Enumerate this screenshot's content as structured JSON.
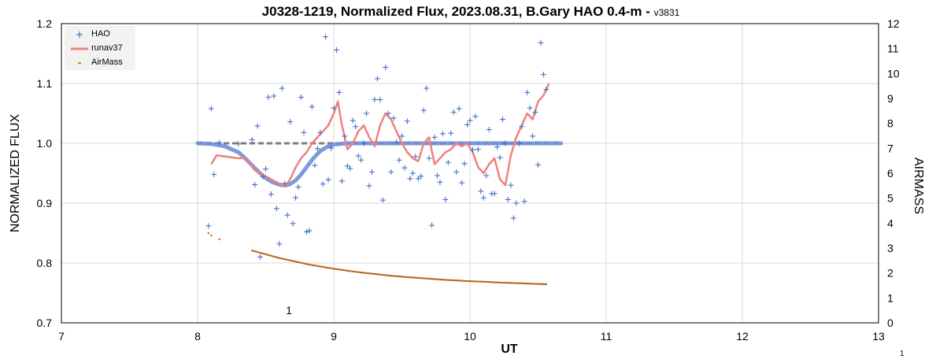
{
  "chart_data": {
    "type": "scatter",
    "title": "J0328-1219, Normalized Flux, 2023.08.31, B.Gary HAO 0.4-m - ",
    "version": "v3831",
    "xlabel": "UT",
    "ylabel": "NORMALIZED FLUX",
    "y2label": "AIRMASS",
    "xlim": [
      7,
      13
    ],
    "ylim": [
      0.7,
      1.2
    ],
    "y2lim": [
      0,
      12
    ],
    "x_ticks": [
      "7",
      "8",
      "9",
      "10",
      "11",
      "12",
      "13"
    ],
    "y_ticks": [
      "0.7",
      "0.8",
      "0.9",
      "1.0",
      "1.1",
      "1.2"
    ],
    "y2_ticks": [
      "0",
      "1",
      "2",
      "3",
      "4",
      "5",
      "6",
      "7",
      "8",
      "9",
      "10",
      "11",
      "12"
    ],
    "grid": true,
    "legend_position": "top-left",
    "annotation": "1",
    "page_number": "1",
    "reference_line": {
      "name": "",
      "y": 1.0,
      "x": [
        8.0,
        10.67
      ],
      "color": "#7f7f7f",
      "style": "dashed"
    },
    "model_curve": {
      "name": "",
      "color": "#6f8fd8",
      "x": [
        8.0,
        8.1,
        8.2,
        8.3,
        8.35,
        8.4,
        8.45,
        8.5,
        8.55,
        8.6,
        8.62,
        8.65,
        8.68,
        8.72,
        8.76,
        8.8,
        8.85,
        8.9,
        8.95,
        9.0,
        9.1,
        9.2,
        9.4,
        10.0,
        10.67
      ],
      "y": [
        1.0,
        0.999,
        0.995,
        0.985,
        0.975,
        0.963,
        0.952,
        0.942,
        0.935,
        0.931,
        0.93,
        0.93,
        0.932,
        0.938,
        0.948,
        0.96,
        0.975,
        0.987,
        0.994,
        0.998,
        1.0,
        1.0,
        1.0,
        1.0,
        1.0
      ]
    },
    "series": [
      {
        "name": "HAO",
        "marker": "+",
        "color": "#4472c4",
        "axis": "left",
        "x": [
          8.08,
          8.1,
          8.12,
          8.16,
          8.3,
          8.4,
          8.42,
          8.44,
          8.46,
          8.48,
          8.5,
          8.52,
          8.54,
          8.56,
          8.58,
          8.6,
          8.62,
          8.64,
          8.66,
          8.68,
          8.7,
          8.72,
          8.74,
          8.76,
          8.78,
          8.8,
          8.82,
          8.84,
          8.86,
          8.88,
          8.9,
          8.92,
          8.94,
          8.96,
          8.98,
          9.0,
          9.02,
          9.04,
          9.06,
          9.08,
          9.1,
          9.12,
          9.14,
          9.16,
          9.18,
          9.2,
          9.22,
          9.24,
          9.26,
          9.28,
          9.3,
          9.32,
          9.34,
          9.36,
          9.38,
          9.4,
          9.42,
          9.44,
          9.46,
          9.48,
          9.5,
          9.52,
          9.54,
          9.56,
          9.58,
          9.6,
          9.62,
          9.64,
          9.66,
          9.68,
          9.7,
          9.72,
          9.74,
          9.76,
          9.78,
          9.8,
          9.82,
          9.84,
          9.86,
          9.88,
          9.9,
          9.92,
          9.94,
          9.96,
          9.98,
          10.0,
          10.02,
          10.04,
          10.06,
          10.08,
          10.1,
          10.12,
          10.14,
          10.16,
          10.18,
          10.2,
          10.22,
          10.24,
          10.26,
          10.28,
          10.3,
          10.32,
          10.34,
          10.36,
          10.38,
          10.4,
          10.42,
          10.44,
          10.46,
          10.48,
          10.5,
          10.52,
          10.54,
          10.56
        ],
        "y": [
          0.862,
          1.058,
          0.948,
          1.001,
          0.999,
          1.006,
          0.931,
          1.029,
          0.81,
          0.944,
          0.957,
          1.077,
          0.915,
          1.079,
          0.891,
          0.832,
          1.092,
          0.933,
          0.88,
          1.036,
          0.866,
          0.909,
          0.927,
          1.077,
          1.018,
          0.852,
          0.854,
          1.061,
          0.963,
          0.991,
          1.018,
          0.932,
          1.178,
          0.939,
          0.992,
          1.059,
          1.156,
          1.085,
          0.937,
          1.012,
          0.962,
          0.958,
          1.038,
          1.028,
          0.979,
          0.972,
          1.0,
          1.05,
          0.929,
          0.952,
          1.073,
          1.108,
          1.073,
          0.905,
          1.127,
          1.05,
          0.952,
          1.042,
          1.002,
          0.972,
          1.012,
          0.959,
          1.037,
          0.941,
          0.95,
          0.978,
          0.941,
          0.945,
          1.055,
          1.092,
          0.975,
          0.863,
          1.01,
          0.946,
          0.935,
          1.016,
          0.906,
          0.968,
          1.017,
          1.052,
          0.952,
          1.058,
          0.934,
          0.966,
          1.031,
          1.038,
          0.989,
          1.045,
          0.99,
          0.92,
          0.909,
          0.946,
          1.023,
          0.916,
          0.916,
          0.994,
          0.976,
          1.04,
          1.0,
          0.906,
          0.93,
          0.875,
          0.9,
          1.0,
          1.028,
          0.903,
          1.085,
          1.059,
          1.012,
          1.052,
          0.964,
          1.168,
          1.115,
          1.09
        ]
      },
      {
        "name": "runav37",
        "marker": "line",
        "color": "#f08080",
        "axis": "left",
        "x": [
          8.1,
          8.14,
          8.3,
          8.35,
          8.42,
          8.46,
          8.5,
          8.54,
          8.58,
          8.62,
          8.65,
          8.68,
          8.72,
          8.76,
          8.8,
          8.84,
          8.88,
          8.92,
          8.96,
          9.0,
          9.03,
          9.06,
          9.1,
          9.14,
          9.18,
          9.22,
          9.26,
          9.3,
          9.34,
          9.38,
          9.42,
          9.46,
          9.5,
          9.54,
          9.58,
          9.62,
          9.66,
          9.7,
          9.74,
          9.78,
          9.82,
          9.86,
          9.9,
          9.94,
          9.98,
          10.02,
          10.06,
          10.1,
          10.14,
          10.18,
          10.22,
          10.26,
          10.3,
          10.34,
          10.38,
          10.42,
          10.46,
          10.5,
          10.54,
          10.58
        ],
        "y": [
          0.965,
          0.98,
          0.975,
          0.975,
          0.955,
          0.95,
          0.945,
          0.94,
          0.935,
          0.93,
          0.93,
          0.94,
          0.96,
          0.975,
          0.985,
          1.0,
          1.01,
          1.02,
          1.03,
          1.05,
          1.07,
          1.03,
          0.99,
          1.0,
          1.02,
          1.03,
          1.01,
          0.995,
          1.03,
          1.05,
          1.04,
          1.02,
          1.0,
          0.985,
          0.975,
          0.97,
          1.0,
          1.01,
          0.965,
          0.975,
          0.985,
          0.99,
          1.0,
          0.995,
          1.0,
          0.985,
          0.96,
          0.95,
          0.965,
          0.975,
          0.94,
          0.93,
          0.98,
          1.01,
          1.03,
          1.05,
          1.04,
          1.07,
          1.08,
          1.1
        ]
      },
      {
        "name": "AirMass",
        "marker": "dot",
        "color": "#8b4513",
        "axis": "right",
        "x": [
          8.08,
          8.1,
          8.16,
          8.4,
          8.5,
          8.6,
          8.7,
          8.8,
          8.9,
          9.0,
          9.1,
          9.2,
          9.3,
          9.4,
          9.5,
          9.6,
          9.7,
          9.8,
          9.9,
          10.0,
          10.1,
          10.2,
          10.3,
          10.4,
          10.5,
          10.56
        ],
        "y": [
          3.6,
          3.5,
          3.35,
          2.9,
          2.75,
          2.6,
          2.48,
          2.36,
          2.26,
          2.17,
          2.09,
          2.02,
          1.96,
          1.9,
          1.85,
          1.81,
          1.77,
          1.73,
          1.7,
          1.67,
          1.65,
          1.62,
          1.6,
          1.58,
          1.56,
          1.55
        ]
      }
    ]
  }
}
